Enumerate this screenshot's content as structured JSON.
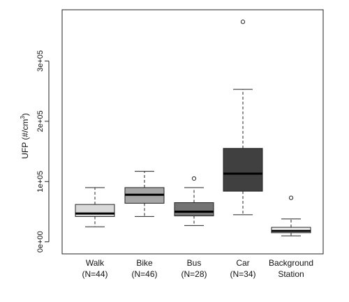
{
  "chart_data": {
    "type": "boxplot",
    "ylabel": "UFP (#/cm",
    "ylabel_sup": "3",
    "ylabel_end": ")",
    "ylim": [
      -20000,
      385000
    ],
    "yticks": [
      {
        "value": 0,
        "label": "0e+00"
      },
      {
        "value": 100000,
        "label": "1e+05"
      },
      {
        "value": 200000,
        "label": "2e+05"
      },
      {
        "value": 300000,
        "label": "3e+05"
      }
    ],
    "categories": [
      {
        "line1": "Walk",
        "line2": "(N=44)"
      },
      {
        "line1": "Bike",
        "line2": "(N=46)"
      },
      {
        "line1": "Bus",
        "line2": "(N=28)"
      },
      {
        "line1": "Car",
        "line2": "(N=34)"
      },
      {
        "line1": "Background",
        "line2": "Station"
      }
    ],
    "boxes": [
      {
        "min": 25000,
        "q1": 42000,
        "median": 47000,
        "q3": 62000,
        "max": 90000,
        "outliers": [],
        "fill": "#d9d9d9"
      },
      {
        "min": 42000,
        "q1": 64000,
        "median": 78000,
        "q3": 90000,
        "max": 117000,
        "outliers": [],
        "fill": "#a6a6a6"
      },
      {
        "min": 27000,
        "q1": 43000,
        "median": 50000,
        "q3": 65000,
        "max": 90000,
        "outliers": [
          105000
        ],
        "fill": "#737373"
      },
      {
        "min": 45000,
        "q1": 84000,
        "median": 113000,
        "q3": 155000,
        "max": 253000,
        "outliers": [
          365000
        ],
        "fill": "#404040"
      },
      {
        "min": 10000,
        "q1": 15000,
        "median": 18000,
        "q3": 24000,
        "max": 38000,
        "outliers": [
          73000
        ],
        "fill": "#f2f2f2"
      }
    ],
    "grid": false,
    "legend": "none"
  }
}
